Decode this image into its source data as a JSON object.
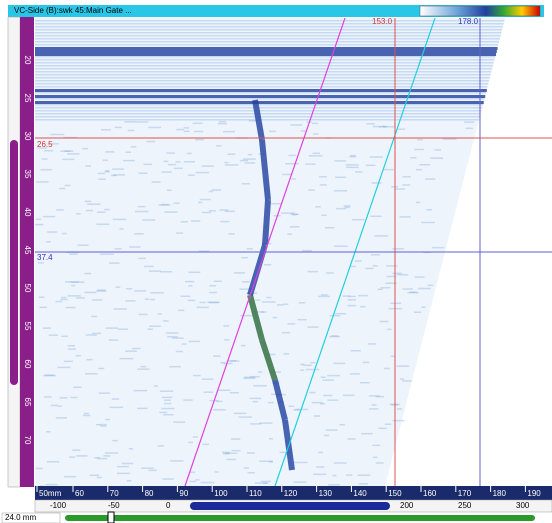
{
  "window": {
    "title": "VC-Side (B):swk 45:Main Gate ..."
  },
  "cursors": {
    "vertical_red": "153.0",
    "vertical_blue": "178.0",
    "horizontal_red": "26.5",
    "horizontal_blue": "37.4"
  },
  "left_ruler": {
    "labels": [
      "20",
      "25",
      "30",
      "35",
      "40",
      "45",
      "50",
      "55",
      "60",
      "65",
      "70"
    ]
  },
  "bottom_ruler": {
    "labels": [
      "50mm",
      "60",
      "70",
      "80",
      "90",
      "100",
      "110",
      "120",
      "130",
      "140",
      "150",
      "160",
      "170",
      "180",
      "190"
    ]
  },
  "index_ruler": {
    "labels": [
      "-100",
      "-50",
      "0",
      "200",
      "250",
      "300"
    ]
  },
  "status": {
    "position": "24.0 mm"
  }
}
